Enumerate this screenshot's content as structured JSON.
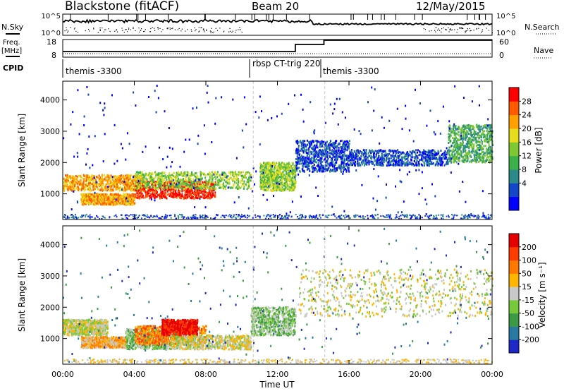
{
  "header": {
    "station": "Blackstone (fitACF)",
    "beam": "Beam 20",
    "date": "12/May/2015"
  },
  "left_labels": {
    "nsky": "N.Sky",
    "freq_line1": "Freq.",
    "freq_line2": "[MHz]",
    "cpid": "CPID"
  },
  "right_labels": {
    "nsearch": "N.Search",
    "nave": "Nave"
  },
  "noise_panel": {
    "left_ticks": [
      "10^5",
      "10^0"
    ],
    "right_ticks": [
      "10^5",
      "10^0"
    ]
  },
  "freq_panel": {
    "left_ticks": [
      "18",
      "8"
    ],
    "right_ticks": [
      "60",
      "0"
    ]
  },
  "cpid_segments": [
    {
      "label": "themis -3300",
      "start": 0.0,
      "end": 10.65
    },
    {
      "label": "rbsp CT-trig 220",
      "start": 10.65,
      "end": 14.65
    },
    {
      "label": "themis -3300",
      "start": 14.65,
      "end": 24.0
    }
  ],
  "x_ticks": [
    "00:00",
    "04:00",
    "08:00",
    "12:00",
    "16:00",
    "20:00",
    "00:00"
  ],
  "x_label": "Time UT",
  "chart_data": [
    {
      "type": "heatmap",
      "name": "power",
      "xlabel": "Time UT",
      "ylabel": "Slant Range [km]",
      "xlim": [
        0,
        24
      ],
      "ylim": [
        180,
        4600
      ],
      "y_ticks": [
        "1000",
        "2000",
        "3000",
        "4000"
      ],
      "colorbar_label": "Power [dB]",
      "colorbar_ticks": [
        "28",
        "24",
        "20",
        "16",
        "12",
        "8",
        "4"
      ],
      "colorbar_colors": [
        "#0000ff",
        "#1446c8",
        "#2d8a8a",
        "#3cb04a",
        "#80c832",
        "#e6dc1e",
        "#ffa000",
        "#ff5a00",
        "#ff0000"
      ],
      "regions": [
        {
          "t0": 0.0,
          "t1": 4.5,
          "r0": 1100,
          "r1": 1600,
          "level": 6
        },
        {
          "t0": 4.0,
          "t1": 8.5,
          "r0": 850,
          "r1": 1400,
          "level": 8
        },
        {
          "t0": 1.0,
          "t1": 4.0,
          "r0": 650,
          "r1": 1000,
          "level": 6
        },
        {
          "t0": 4.0,
          "t1": 10.5,
          "r0": 1150,
          "r1": 1700,
          "level": 4
        },
        {
          "t0": 11.0,
          "t1": 13.0,
          "r0": 1100,
          "r1": 2000,
          "level": 4
        },
        {
          "t0": 13.0,
          "t1": 16.0,
          "r0": 1700,
          "r1": 2700,
          "level": 1
        },
        {
          "t0": 16.0,
          "t1": 21.5,
          "r0": 1900,
          "r1": 2400,
          "level": 1
        },
        {
          "t0": 21.5,
          "t1": 24.0,
          "r0": 2000,
          "r1": 3200,
          "level": 3
        },
        {
          "t0": 0.0,
          "t1": 24.0,
          "r0": 180,
          "r1": 4500,
          "level": 0
        }
      ]
    },
    {
      "type": "heatmap",
      "name": "velocity",
      "xlabel": "Time UT",
      "ylabel": "Slant Range [km]",
      "xlim": [
        0,
        24
      ],
      "ylim": [
        180,
        4600
      ],
      "y_ticks": [
        "1000",
        "2000",
        "3000",
        "4000"
      ],
      "colorbar_label": "Velocity [m s⁻¹]",
      "colorbar_ticks": [
        "200",
        "100",
        "50",
        "15",
        "-15",
        "-50",
        "-100",
        "-200"
      ],
      "colorbar_colors": [
        "#1e28c8",
        "#287aa0",
        "#3c9a46",
        "#78c83c",
        "#c8c8c8",
        "#ffb400",
        "#ff7800",
        "#ff3c00",
        "#e60000"
      ],
      "regions": [
        {
          "t0": 0.0,
          "t1": 2.5,
          "r0": 1100,
          "r1": 1600,
          "level": 4
        },
        {
          "t0": 1.0,
          "t1": 3.5,
          "r0": 700,
          "r1": 1050,
          "level": 5
        },
        {
          "t0": 3.5,
          "t1": 6.0,
          "r0": 650,
          "r1": 1300,
          "level": 3
        },
        {
          "t0": 4.0,
          "t1": 8.0,
          "r0": 800,
          "r1": 1400,
          "level": 6
        },
        {
          "t0": 5.5,
          "t1": 7.5,
          "r0": 1100,
          "r1": 1600,
          "level": 8
        },
        {
          "t0": 6.0,
          "t1": 10.5,
          "r0": 650,
          "r1": 1100,
          "level": 4
        },
        {
          "t0": 10.5,
          "t1": 13.0,
          "r0": 1100,
          "r1": 2000,
          "level": 3
        },
        {
          "t0": 13.0,
          "t1": 24.0,
          "r0": 1700,
          "r1": 3200,
          "level": 4
        },
        {
          "t0": 0.0,
          "t1": 24.0,
          "r0": 180,
          "r1": 4500,
          "level": 1
        }
      ]
    }
  ]
}
